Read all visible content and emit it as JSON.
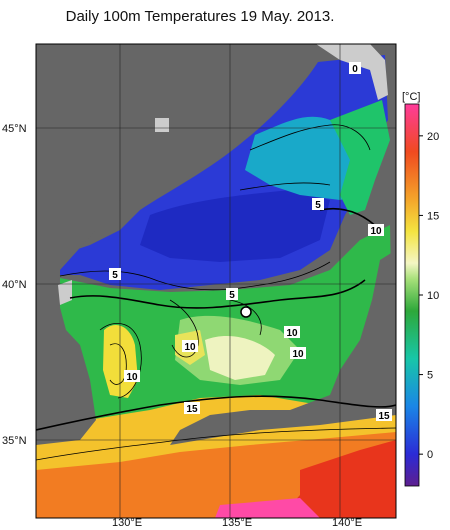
{
  "title": "Daily 100m Temperatures 19 May. 2013.",
  "map": {
    "lon_ticks": [
      "130°E",
      "135°E",
      "140°E"
    ],
    "lat_ticks": [
      "45°N",
      "40°N",
      "35°N"
    ],
    "colors": {
      "land": "#666666",
      "missing": "#cccccc",
      "frame": "#000000"
    }
  },
  "contour_labels": [
    "0",
    "5",
    "10",
    "5",
    "5",
    "10",
    "10",
    "10",
    "10",
    "15",
    "15"
  ],
  "colorbar": {
    "unit_label": "[°C]",
    "tick_labels": [
      "20",
      "15",
      "10",
      "5",
      "0"
    ],
    "min": -2,
    "max": 22,
    "stops": [
      {
        "value": -2,
        "color": "#5e1f8f"
      },
      {
        "value": 0,
        "color": "#2b2bd6"
      },
      {
        "value": 3,
        "color": "#1a86e6"
      },
      {
        "value": 6,
        "color": "#18c6a8"
      },
      {
        "value": 9,
        "color": "#2ea83a"
      },
      {
        "value": 11,
        "color": "#a7e07a"
      },
      {
        "value": 12,
        "color": "#f4f6c4"
      },
      {
        "value": 14,
        "color": "#f4e440"
      },
      {
        "value": 16,
        "color": "#f4a52a"
      },
      {
        "value": 19,
        "color": "#f04a20"
      },
      {
        "value": 22,
        "color": "#ff3c9a"
      }
    ]
  }
}
